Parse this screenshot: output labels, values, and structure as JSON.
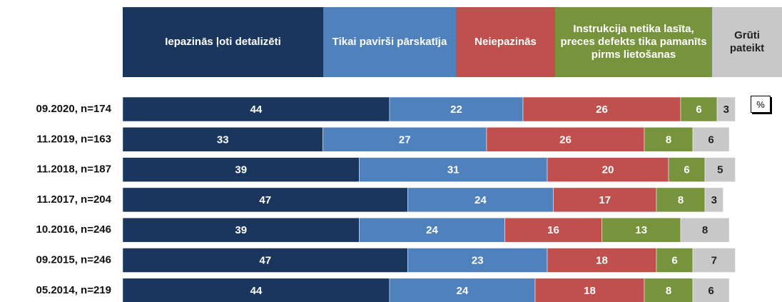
{
  "chart_data": {
    "type": "stacked-bar-horizontal",
    "unit_label": "%",
    "categories": [
      "09.2020, n=174",
      "11.2019, n=163",
      "11.2018, n=187",
      "11.2017, n=204",
      "10.2016, n=246",
      "09.2015, n=246",
      "05.2014, n=219"
    ],
    "series": [
      {
        "name": "Iepazinās ļoti detalizēti",
        "color": "#1b365d",
        "values": [
          44,
          33,
          39,
          47,
          39,
          47,
          44
        ]
      },
      {
        "name": "Tikai pavirši pārskatīja",
        "color": "#4f81bd",
        "values": [
          22,
          27,
          31,
          24,
          24,
          23,
          24
        ]
      },
      {
        "name": "Neiepazinās",
        "color": "#c0504d",
        "values": [
          26,
          26,
          20,
          17,
          16,
          18,
          18
        ]
      },
      {
        "name": "Instrukcija netika lasīta, preces defekts tika pamanīts pirms lietošanas",
        "color": "#77933c",
        "values": [
          6,
          8,
          6,
          8,
          13,
          6,
          8
        ]
      },
      {
        "name": "Grūti pateikt",
        "color": "#c8c8c8",
        "values": [
          3,
          6,
          5,
          3,
          8,
          7,
          6
        ]
      }
    ]
  }
}
